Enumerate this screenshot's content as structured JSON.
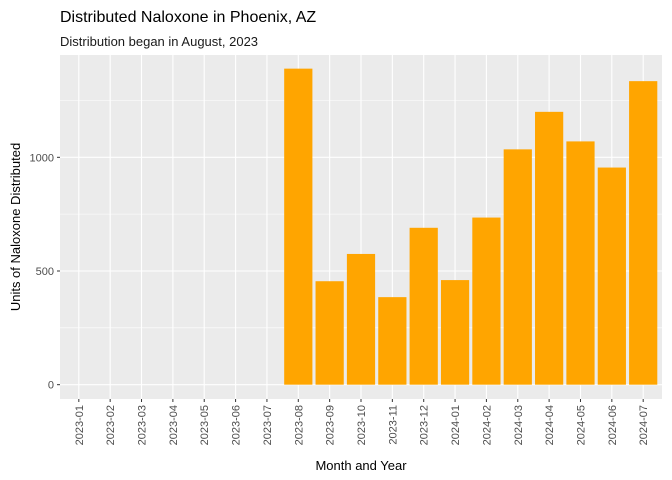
{
  "chart_data": {
    "type": "bar",
    "title": "Distributed Naloxone in Phoenix, AZ",
    "subtitle": "Distribution began in August, 2023",
    "xlabel": "Month and Year",
    "ylabel": "Units of Naloxone Distributed",
    "categories": [
      "2023-01",
      "2023-02",
      "2023-03",
      "2023-04",
      "2023-05",
      "2023-06",
      "2023-07",
      "2023-08",
      "2023-09",
      "2023-10",
      "2023-11",
      "2023-12",
      "2024-01",
      "2024-02",
      "2024-03",
      "2024-04",
      "2024-05",
      "2024-06",
      "2024-07"
    ],
    "values": [
      0,
      0,
      0,
      0,
      0,
      0,
      0,
      1390,
      455,
      575,
      385,
      690,
      460,
      735,
      1035,
      1200,
      1070,
      955,
      1335
    ],
    "ylim": [
      -63,
      1450
    ],
    "yticks": [
      0,
      500,
      1000
    ],
    "ytick_labels": [
      "0",
      "500",
      "1000"
    ],
    "bar_color": "#FFA500",
    "panel_background": "#EBEBEB",
    "grid": true
  }
}
